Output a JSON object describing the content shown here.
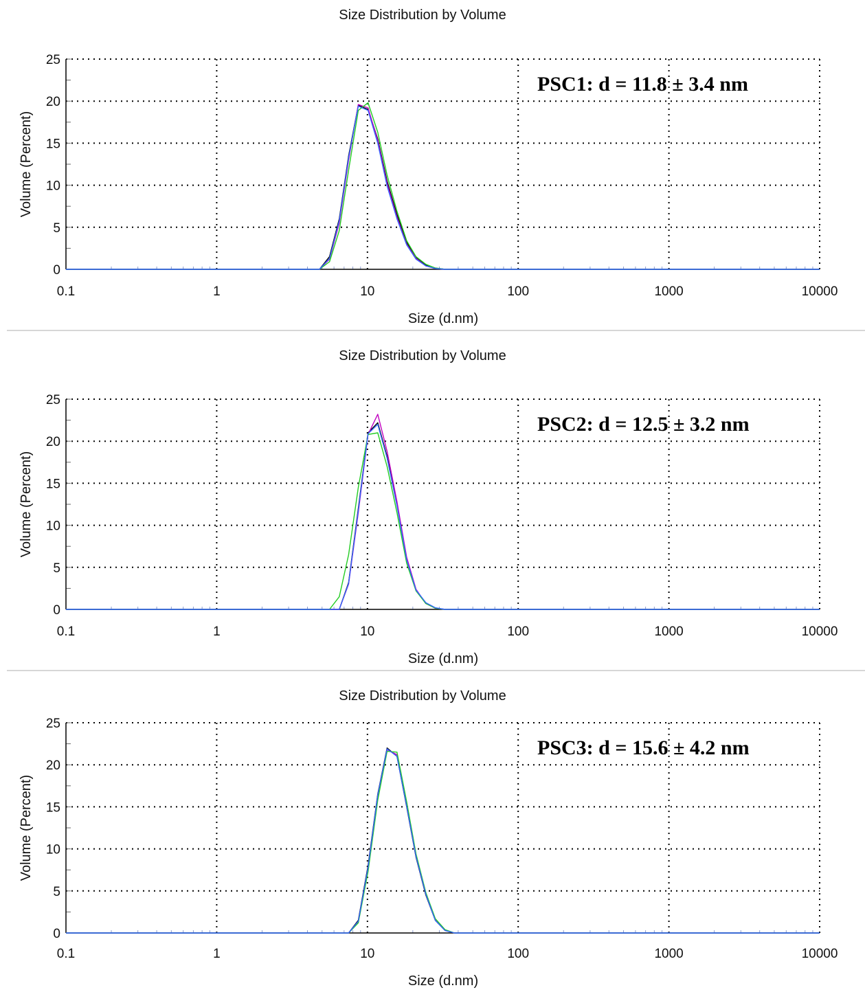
{
  "chart_data": [
    {
      "type": "line",
      "title": "Size Distribution by Volume",
      "xlabel": "Size (d.nm)",
      "ylabel": "Volume (Percent)",
      "xscale": "log",
      "xlim": [
        0.1,
        10000
      ],
      "ylim": [
        0,
        25
      ],
      "grid": true,
      "x_ticks": [
        "0.1",
        "1",
        "10",
        "100",
        "1000",
        "10000"
      ],
      "y_ticks": [
        "0",
        "5",
        "10",
        "15",
        "20",
        "25"
      ],
      "annotation": "PSC1: d = 11.8 ± 3.4 nm",
      "series": [
        {
          "color": "#000000",
          "x": [
            0.1,
            4.8,
            5.6,
            6.5,
            7.5,
            8.7,
            10.1,
            11.7,
            13.5,
            15.7,
            18.2,
            21.0,
            24.4,
            28.2,
            32.7,
            10000
          ],
          "y": [
            0,
            0,
            1.5,
            6.0,
            13.5,
            19.5,
            19.0,
            15.5,
            10.5,
            6.5,
            3.2,
            1.4,
            0.5,
            0.15,
            0,
            0
          ]
        },
        {
          "color": "#c000c0",
          "x": [
            0.1,
            4.8,
            5.6,
            6.5,
            7.5,
            8.7,
            10.1,
            11.7,
            13.5,
            15.7,
            18.2,
            21.0,
            24.4,
            28.2,
            32.7,
            10000
          ],
          "y": [
            0,
            0,
            1.2,
            5.5,
            13.0,
            19.6,
            19.2,
            15.3,
            10.2,
            6.2,
            3.0,
            1.3,
            0.4,
            0.1,
            0,
            0
          ]
        },
        {
          "color": "#22cc22",
          "x": [
            0.1,
            4.8,
            5.6,
            6.5,
            7.5,
            8.7,
            10.1,
            11.7,
            13.5,
            15.7,
            18.2,
            21.0,
            24.4,
            28.2,
            32.7,
            10000
          ],
          "y": [
            0,
            0,
            0.9,
            4.6,
            11.8,
            18.9,
            19.8,
            16.3,
            11.2,
            6.9,
            3.4,
            1.5,
            0.6,
            0.15,
            0,
            0
          ]
        },
        {
          "color": "#3366ff",
          "x": [
            0.1,
            4.8,
            5.6,
            6.5,
            7.5,
            8.7,
            10.1,
            11.7,
            13.5,
            15.7,
            18.2,
            21.0,
            24.4,
            28.2,
            32.7,
            10000
          ],
          "y": [
            0,
            0,
            1.3,
            5.8,
            13.3,
            19.4,
            18.9,
            15.0,
            9.9,
            6.0,
            2.9,
            1.2,
            0.4,
            0.1,
            0,
            0
          ]
        }
      ]
    },
    {
      "type": "line",
      "title": "Size Distribution by Volume",
      "xlabel": "Size (d.nm)",
      "ylabel": "Volume (Percent)",
      "xscale": "log",
      "xlim": [
        0.1,
        10000
      ],
      "ylim": [
        0,
        25
      ],
      "grid": true,
      "x_ticks": [
        "0.1",
        "1",
        "10",
        "100",
        "1000",
        "10000"
      ],
      "y_ticks": [
        "0",
        "5",
        "10",
        "15",
        "20",
        "25"
      ],
      "annotation": "PSC2: d = 12.5 ± 3.2 nm",
      "series": [
        {
          "color": "#000000",
          "x": [
            0.1,
            6.5,
            7.5,
            8.7,
            10.1,
            11.7,
            13.5,
            15.7,
            18.2,
            21.0,
            24.4,
            28.2,
            32.7,
            10000
          ],
          "y": [
            0,
            0,
            3.2,
            12.0,
            21.0,
            22.2,
            18.2,
            12.5,
            6.0,
            2.3,
            0.7,
            0.15,
            0,
            0
          ]
        },
        {
          "color": "#c000c0",
          "x": [
            0.1,
            6.5,
            7.5,
            8.7,
            10.1,
            11.7,
            13.5,
            15.7,
            18.2,
            21.0,
            24.4,
            28.2,
            32.7,
            10000
          ],
          "y": [
            0,
            0,
            3.0,
            11.5,
            20.8,
            23.2,
            18.8,
            12.8,
            6.2,
            2.4,
            0.7,
            0.15,
            0,
            0
          ]
        },
        {
          "color": "#22cc22",
          "x": [
            0.1,
            5.6,
            6.5,
            7.5,
            8.7,
            10.1,
            11.7,
            13.5,
            15.7,
            18.2,
            21.0,
            24.4,
            28.2,
            32.7,
            10000
          ],
          "y": [
            0,
            0,
            1.5,
            6.5,
            14.5,
            20.8,
            21.0,
            17.0,
            11.5,
            5.5,
            2.2,
            0.7,
            0.15,
            0,
            0
          ]
        },
        {
          "color": "#3366ff",
          "x": [
            0.1,
            6.5,
            7.5,
            8.7,
            10.1,
            11.7,
            13.5,
            15.7,
            18.2,
            21.0,
            24.4,
            28.2,
            32.7,
            10000
          ],
          "y": [
            0,
            0,
            3.1,
            11.8,
            20.9,
            22.0,
            18.0,
            12.3,
            5.9,
            2.3,
            0.8,
            0.2,
            0,
            0
          ]
        }
      ]
    },
    {
      "type": "line",
      "title": "Size Distribution by Volume",
      "xlabel": "Size (d.nm)",
      "ylabel": "Volume (Percent)",
      "xscale": "log",
      "xlim": [
        0.1,
        10000
      ],
      "ylim": [
        0,
        25
      ],
      "grid": true,
      "x_ticks": [
        "0.1",
        "1",
        "10",
        "100",
        "1000",
        "10000"
      ],
      "y_ticks": [
        "0",
        "5",
        "10",
        "15",
        "20",
        "25"
      ],
      "annotation": "PSC3: d = 15.6 ± 4.2 nm",
      "series": [
        {
          "color": "#000000",
          "x": [
            0.1,
            7.5,
            8.7,
            10.1,
            11.7,
            13.5,
            15.7,
            18.2,
            21.0,
            24.4,
            28.2,
            32.7,
            37.8,
            10000
          ],
          "y": [
            0,
            0,
            1.5,
            8.0,
            16.5,
            22.0,
            21.0,
            15.0,
            9.0,
            4.5,
            1.5,
            0.3,
            0,
            0
          ]
        },
        {
          "color": "#c000c0",
          "x": [
            0.1,
            7.5,
            8.7,
            10.1,
            11.7,
            13.5,
            15.7,
            18.2,
            21.0,
            24.4,
            28.2,
            32.7,
            37.8,
            10000
          ],
          "y": [
            0,
            0,
            1.3,
            7.6,
            16.2,
            21.8,
            21.2,
            15.3,
            9.2,
            4.7,
            1.6,
            0.35,
            0,
            0
          ]
        },
        {
          "color": "#22cc22",
          "x": [
            0.1,
            7.5,
            8.7,
            10.1,
            11.7,
            13.5,
            15.7,
            18.2,
            21.0,
            24.4,
            28.2,
            32.7,
            37.8,
            10000
          ],
          "y": [
            0,
            0,
            1.2,
            7.3,
            15.8,
            21.6,
            21.5,
            15.6,
            9.4,
            4.8,
            1.7,
            0.4,
            0,
            0
          ]
        },
        {
          "color": "#3366ff",
          "x": [
            0.1,
            7.5,
            8.7,
            10.1,
            11.7,
            13.5,
            15.7,
            18.2,
            21.0,
            24.4,
            28.2,
            32.7,
            37.8,
            10000
          ],
          "y": [
            0,
            0,
            1.4,
            7.8,
            16.4,
            21.9,
            21.0,
            15.1,
            9.1,
            4.6,
            1.5,
            0.3,
            0,
            0
          ]
        }
      ]
    }
  ]
}
